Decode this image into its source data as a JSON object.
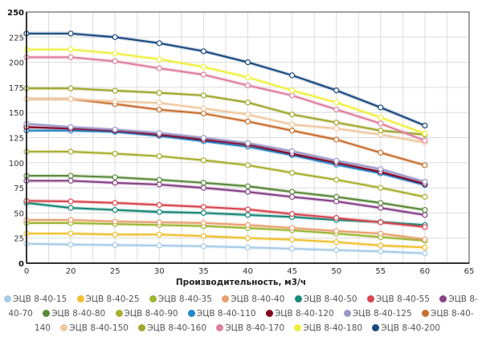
{
  "chart_data": {
    "type": "line",
    "title": "",
    "xlabel": "Производительность, м3/ч",
    "ylabel": "",
    "x_categories": [
      "0",
      "20",
      "25",
      "30",
      "35",
      "40",
      "45",
      "50",
      "55",
      "60",
      "65"
    ],
    "x": [
      0,
      20,
      25,
      30,
      35,
      40,
      45,
      50,
      55,
      60
    ],
    "ylim": [
      0,
      250
    ],
    "y_ticks": [
      0,
      25,
      50,
      75,
      100,
      125,
      150,
      175,
      200,
      225,
      250
    ],
    "grid": true,
    "legend_position": "bottom",
    "series": [
      {
        "name": "ЭЦВ 8-40-15",
        "color": "#a8cce8",
        "values": [
          19.4,
          18.6,
          18,
          17.6,
          16.9,
          15.7,
          14.4,
          13,
          11.7,
          9.8
        ]
      },
      {
        "name": "ЭЦВ 8-40-25",
        "color": "#f0c030",
        "values": [
          29.5,
          29.5,
          28.5,
          28.5,
          27,
          25,
          23.4,
          21,
          17.6,
          15.7
        ]
      },
      {
        "name": "ЭЦВ 8-40-35",
        "color": "#9ab832",
        "values": [
          40,
          40,
          39,
          38,
          37,
          35,
          32.7,
          29.5,
          26,
          22.4
        ]
      },
      {
        "name": "ЭЦВ 8-40-40",
        "color": "#e8a070",
        "values": [
          43,
          43,
          41.5,
          40.7,
          40,
          38,
          35,
          32,
          29.5,
          23.7
        ]
      },
      {
        "name": "ЭЦВ 8-40-50",
        "color": "#1a8a7a",
        "values": [
          60,
          55,
          53,
          51,
          50,
          48,
          46,
          43,
          41,
          38
        ]
      },
      {
        "name": "ЭЦВ 8-40-55",
        "color": "#d84850",
        "values": [
          62,
          61.5,
          60,
          58,
          56,
          53.5,
          49,
          45,
          40.7,
          36
        ]
      },
      {
        "name": "ЭЦВ 8-40-70",
        "color": "#884488",
        "values": [
          82,
          82,
          80,
          78.3,
          75,
          71,
          66,
          61.5,
          55,
          48
        ]
      },
      {
        "name": "ЭЦВ 8-40-80",
        "color": "#5a8a3a",
        "values": [
          87,
          87,
          85.5,
          83,
          80,
          76.6,
          71,
          66,
          60,
          53
        ]
      },
      {
        "name": "ЭЦВ 8-40-90",
        "color": "#a8b030",
        "values": [
          111,
          111,
          109,
          106.5,
          102.5,
          97.5,
          90,
          83,
          75,
          66
        ]
      },
      {
        "name": "ЭЦВ 8-40-110",
        "color": "#2288cc",
        "values": [
          132,
          132,
          130.7,
          126.7,
          121.4,
          116,
          107.5,
          98,
          89.4,
          77.7
        ]
      },
      {
        "name": "ЭЦВ 8-40-120",
        "color": "#880020",
        "values": [
          135.5,
          134,
          132,
          128,
          123,
          118,
          109,
          100,
          91,
          79
        ]
      },
      {
        "name": "ЭЦВ 8-40-125",
        "color": "#9a98c8",
        "values": [
          138.7,
          135.5,
          133,
          129.6,
          124.8,
          119.5,
          111.5,
          102,
          93.7,
          81
        ]
      },
      {
        "name": "ЭЦВ 8-40-140",
        "color": "#c87030",
        "values": [
          163.5,
          163.5,
          158.4,
          152.8,
          149,
          141,
          132,
          123,
          110,
          97.5
        ]
      },
      {
        "name": "ЭЦВ 8-40-150",
        "color": "#f0c8a0",
        "values": [
          163.5,
          163.5,
          161,
          159.5,
          154,
          148,
          138,
          134,
          128,
          120
        ]
      },
      {
        "name": "ЭЦВ 8-40-160",
        "color": "#a0a830",
        "values": [
          174,
          174,
          171.7,
          169.6,
          167,
          160,
          148,
          140,
          132,
          128
        ]
      },
      {
        "name": "ЭЦВ 8-40-170",
        "color": "#e080a0",
        "values": [
          205,
          205,
          201,
          194,
          187.7,
          177,
          167,
          153,
          139,
          122
        ]
      },
      {
        "name": "ЭЦВ 8-40-180",
        "color": "#f0f040",
        "values": [
          212.7,
          212.7,
          208.7,
          203,
          195.4,
          185,
          172,
          160,
          145,
          129
        ]
      },
      {
        "name": "ЭЦВ 8-40-200",
        "color": "#1a4a80",
        "values": [
          228.6,
          228.6,
          225,
          219,
          211,
          200,
          187,
          172,
          155,
          137
        ]
      }
    ]
  }
}
